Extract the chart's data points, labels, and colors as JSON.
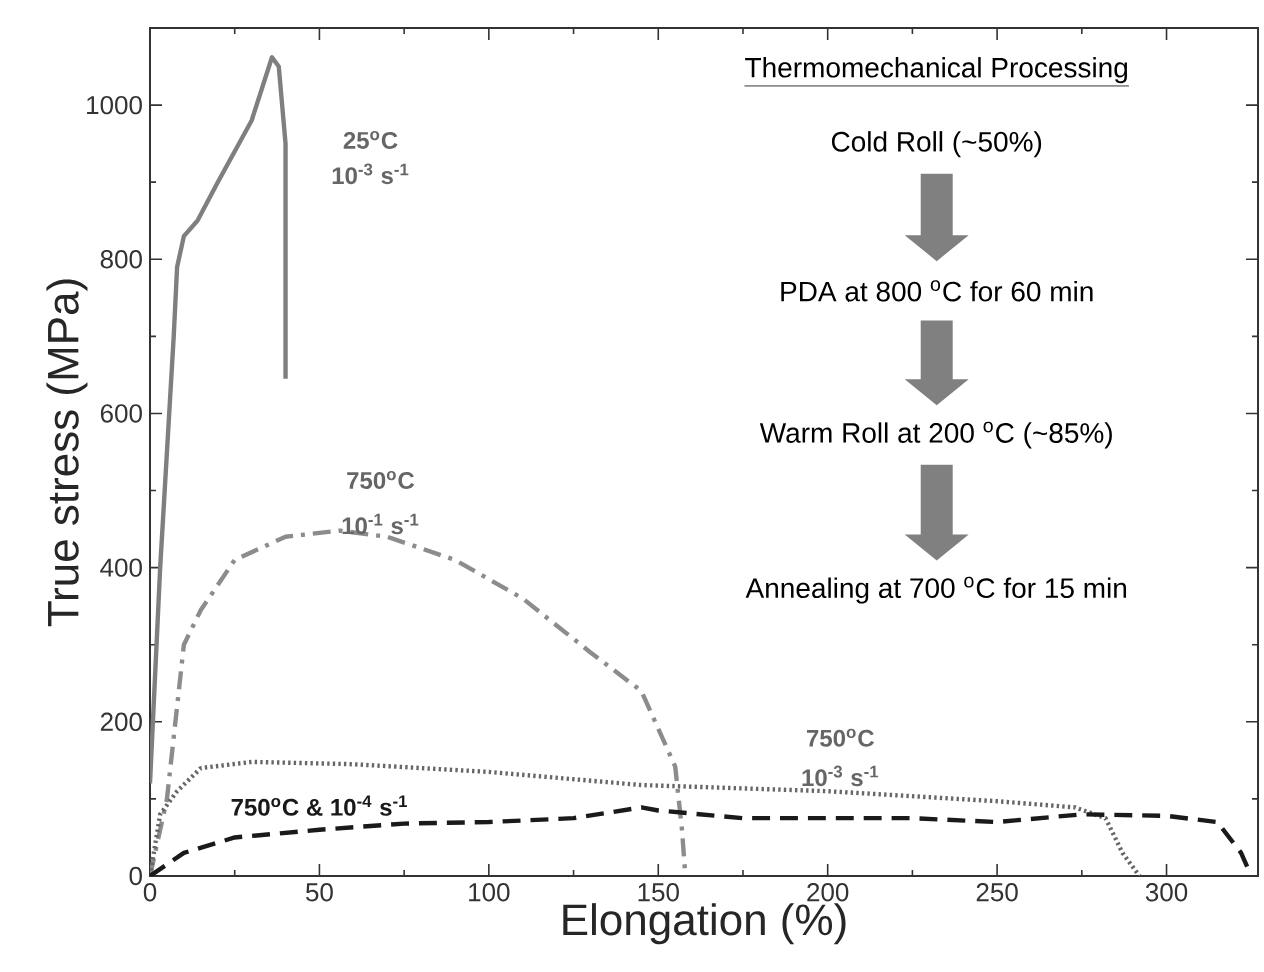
{
  "chart_data": {
    "type": "line",
    "xlabel": "Elongation (%)",
    "ylabel": "True stress (MPa)",
    "xlim": [
      0,
      327
    ],
    "ylim": [
      0,
      1100
    ],
    "xticks": [
      0,
      50,
      100,
      150,
      200,
      250,
      300
    ],
    "yticks": [
      0,
      200,
      400,
      600,
      800,
      1000
    ],
    "marker": "none",
    "series": [
      {
        "color": "#7f7f7f",
        "line_style": "solid",
        "x": [
          0,
          3,
          7,
          8,
          10,
          14,
          20,
          30,
          36,
          38,
          39,
          40,
          40
        ],
        "values": [
          120,
          400,
          700,
          790,
          830,
          850,
          900,
          980,
          1062,
          1050,
          1000,
          950,
          645
        ]
      },
      {
        "color": "#8c8c8c",
        "line_style": "dashdot",
        "x": [
          0,
          5,
          10,
          15,
          25,
          40,
          56,
          70,
          90,
          110,
          130,
          145,
          155,
          157,
          158
        ],
        "values": [
          0,
          100,
          300,
          345,
          410,
          440,
          448,
          440,
          410,
          360,
          290,
          240,
          142,
          60,
          0
        ]
      },
      {
        "color": "#666666",
        "line_style": "dotted",
        "x": [
          0,
          3,
          8,
          15,
          30,
          60,
          100,
          145,
          200,
          250,
          273,
          282,
          287,
          292
        ],
        "values": [
          0,
          80,
          110,
          140,
          148,
          145,
          135,
          118,
          110,
          97,
          89,
          75,
          30,
          0
        ]
      },
      {
        "color": "#1a1a1a",
        "line_style": "dashed",
        "x": [
          0,
          10,
          25,
          50,
          75,
          100,
          125,
          145,
          150,
          175,
          200,
          225,
          250,
          275,
          300,
          315,
          322,
          325
        ],
        "values": [
          0,
          30,
          50,
          60,
          68,
          70,
          75,
          89,
          85,
          75,
          75,
          75,
          70,
          80,
          78,
          70,
          30,
          0
        ]
      }
    ],
    "annotations": [
      "25$^{o}$C",
      "10$^{-3}$ s$^{-1}$",
      "750$^{o}$C",
      "10$^{-1}$ s$^{-1}$",
      "750$^{o}$C & 10$^{-4}$ s$^{-1}$",
      "750$^{o}$C",
      "10$^{-3}$ s$^{-1}$",
      "Thermomechanical Processing",
      "Cold Roll (~50%)",
      "PDA at 800 $^{o}$C for 60 min",
      "Warm Roll at 200 $^{o}$C (~85%)",
      "Annealing at 700 $^{o}$C for 15 min"
    ]
  }
}
